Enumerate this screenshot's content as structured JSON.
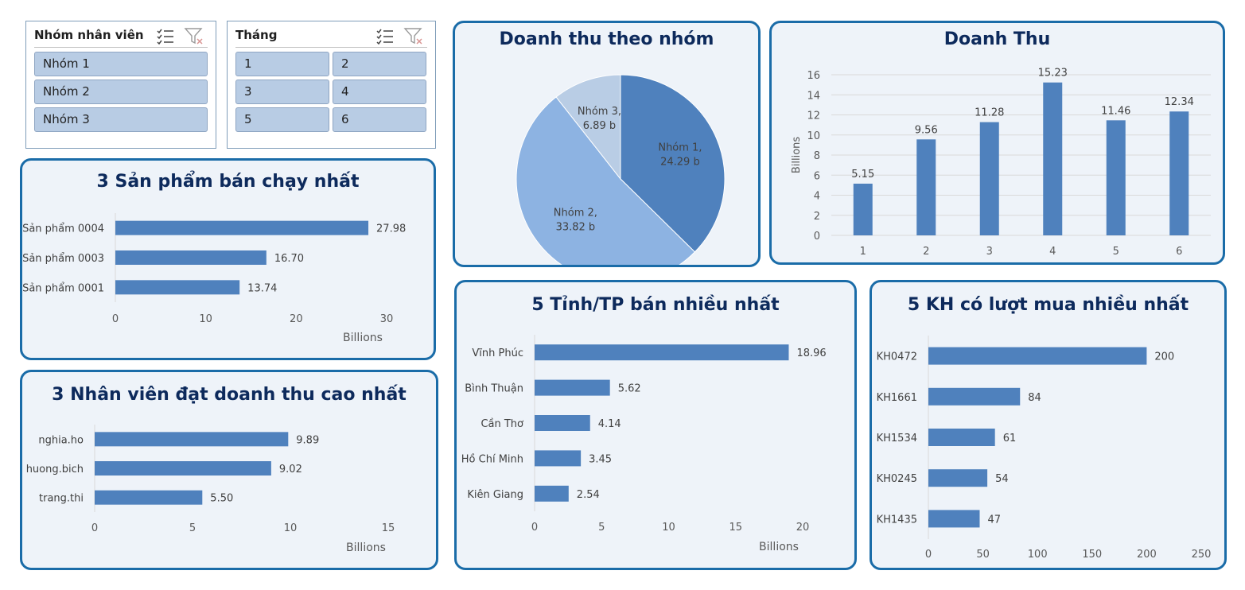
{
  "slicer_group": {
    "title": "Nhóm nhân viên",
    "items": [
      "Nhóm 1",
      "Nhóm 2",
      "Nhóm 3"
    ]
  },
  "slicer_month": {
    "title": "Tháng",
    "items": [
      "1",
      "2",
      "3",
      "4",
      "5",
      "6"
    ]
  },
  "colors": {
    "bar": "#4f81bd",
    "panel_border": "#1a6ca8",
    "panel_bg": "#eef3f9",
    "title": "#0d2a5c"
  },
  "chart_data": [
    {
      "id": "pie_group",
      "type": "pie",
      "title": "Doanh thu theo nhóm",
      "slices": [
        {
          "label": "Nhóm 1,",
          "value_label": "24.29 b",
          "value": 24.29,
          "color": "#4f81bd"
        },
        {
          "label": "Nhóm 2,",
          "value_label": "33.82 b",
          "value": 33.82,
          "color": "#8db3e2"
        },
        {
          "label": "Nhóm 3,",
          "value_label": "6.89 b",
          "value": 6.89,
          "color": "#b9cde5"
        }
      ]
    },
    {
      "id": "rev_month",
      "type": "bar",
      "title": "Doanh Thu",
      "ylabel": "Billions",
      "categories": [
        "1",
        "2",
        "3",
        "4",
        "5",
        "6"
      ],
      "values": [
        5.15,
        9.56,
        11.28,
        15.23,
        11.46,
        12.34
      ],
      "value_labels": [
        "5.15",
        "9.56",
        "11.28",
        "15.23",
        "11.46",
        "12.34"
      ],
      "ylim": [
        0,
        16
      ],
      "yticks": [
        "0",
        "2",
        "4",
        "6",
        "8",
        "10",
        "12",
        "14",
        "16"
      ],
      "grid": true
    },
    {
      "id": "top_products",
      "type": "bar",
      "orientation": "horizontal",
      "title": "3 Sản phẩm bán chạy nhất",
      "categories": [
        "Sản phẩm 0004",
        "Sản phẩm 0003",
        "Sản phẩm 0001"
      ],
      "values": [
        27.98,
        16.7,
        13.74
      ],
      "value_labels": [
        "27.98",
        "16.70",
        "13.74"
      ],
      "xlim": [
        0,
        30
      ],
      "xticks": [
        "0",
        "10",
        "20",
        "30"
      ],
      "xlabel": "Billions"
    },
    {
      "id": "top_staff",
      "type": "bar",
      "orientation": "horizontal",
      "title": "3 Nhân viên đạt doanh thu cao nhất",
      "categories": [
        "nghia.ho",
        "huong.bich",
        "trang.thi"
      ],
      "values": [
        9.89,
        9.02,
        5.5
      ],
      "value_labels": [
        "9.89",
        "9.02",
        "5.50"
      ],
      "xlim": [
        0,
        15
      ],
      "xticks": [
        "0",
        "5",
        "10",
        "15"
      ],
      "xlabel": "Billions"
    },
    {
      "id": "top_provinces",
      "type": "bar",
      "orientation": "horizontal",
      "title": "5 Tỉnh/TP bán nhiều nhất",
      "categories": [
        "Vĩnh Phúc",
        "Bình Thuận",
        "Cần Thơ",
        "Hồ Chí Minh",
        "Kiên Giang"
      ],
      "values": [
        18.96,
        5.62,
        4.14,
        3.45,
        2.54
      ],
      "value_labels": [
        "18.96",
        "5.62",
        "4.14",
        "3.45",
        "2.54"
      ],
      "xlim": [
        0,
        20
      ],
      "xticks": [
        "0",
        "5",
        "10",
        "15",
        "20"
      ],
      "xlabel": "Billions"
    },
    {
      "id": "top_customers",
      "type": "bar",
      "orientation": "horizontal",
      "title": "5 KH có lượt mua nhiều nhất",
      "categories": [
        "KH0472",
        "KH1661",
        "KH1534",
        "KH0245",
        "KH1435"
      ],
      "values": [
        200,
        84,
        61,
        54,
        47
      ],
      "value_labels": [
        "200",
        "84",
        "61",
        "54",
        "47"
      ],
      "xlim": [
        0,
        250
      ],
      "xticks": [
        "0",
        "50",
        "100",
        "150",
        "200",
        "250"
      ],
      "xlabel": ""
    }
  ]
}
